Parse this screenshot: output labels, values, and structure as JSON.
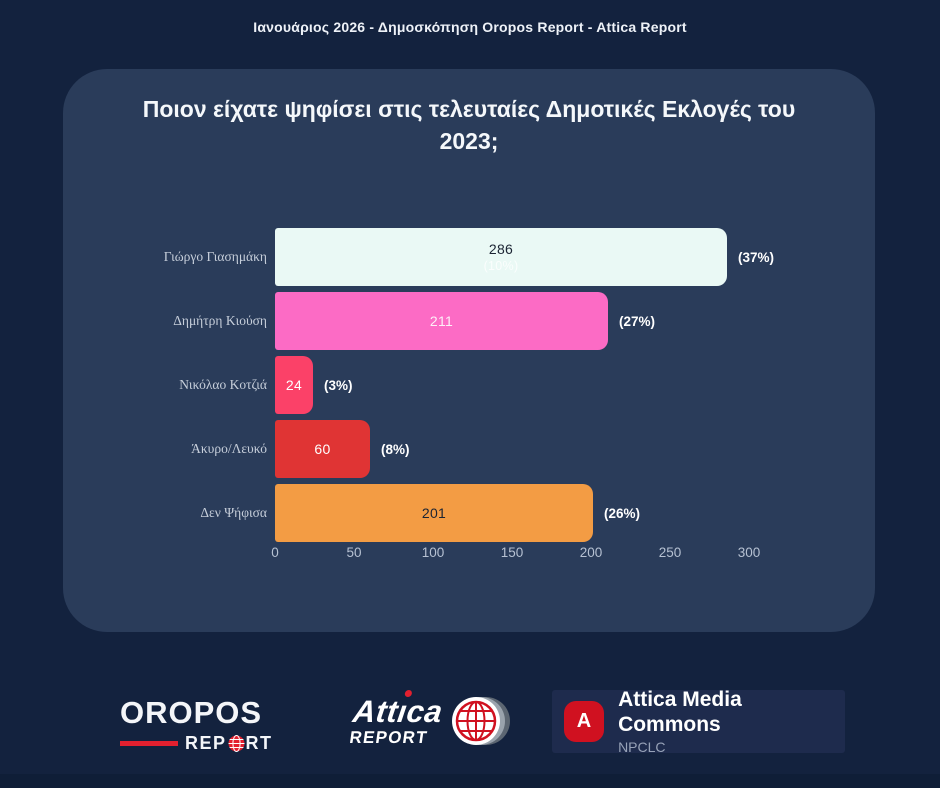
{
  "page": {
    "banner": "Ιανουάριος 2026 - Δημοσκόπηση Oropos Report - Attica Report"
  },
  "chart_data": {
    "type": "bar",
    "orientation": "horizontal",
    "title": "Ποιον είχατε ψηφίσει στις τελευταίες Δημοτικές Εκλογές του 2023;",
    "categories": [
      "Γιώργο Γιασημάκη",
      "Δημήτρη Κιούση",
      "Νικόλαο Κοτζιά",
      "Άκυρο/Λευκό",
      "Δεν Ψήφισα"
    ],
    "values": [
      286,
      211,
      24,
      60,
      201
    ],
    "percent_labels": [
      "(37%)",
      "(27%)",
      "(3%)",
      "(8%)",
      "(26%)"
    ],
    "inner_ghost": {
      "index": 0,
      "text": "(10%)"
    },
    "bar_colors": [
      "#EAF9F5",
      "#FC6BC5",
      "#FB4168",
      "#E03434",
      "#F39C44"
    ],
    "value_text_colors": [
      "#1B2433",
      "#FDEFF7",
      "#FFFFFF",
      "#FFFFFF",
      "#1B2433"
    ],
    "xticks": [
      0,
      50,
      100,
      150,
      200,
      250,
      300
    ],
    "xlim": [
      0,
      300
    ],
    "xlabel": "",
    "ylabel": "",
    "grid": false,
    "legend": false
  },
  "footer": {
    "oropos": {
      "title": "OROPOS",
      "sub": "REPORT",
      "sub_pre": "REP",
      "sub_post": "RT"
    },
    "attica": {
      "title": "Attica",
      "pre": "Att",
      "i": "ı",
      "post": "ca",
      "sub": "REPORT"
    },
    "amc": {
      "icon_letter": "A",
      "title": "Attica Media Commons",
      "subtitle": "NPCLC"
    }
  },
  "colors": {
    "background": "#13223E",
    "card": "#2A3C5A",
    "accent_red": "#E3202F",
    "amc_red": "#D01120"
  }
}
